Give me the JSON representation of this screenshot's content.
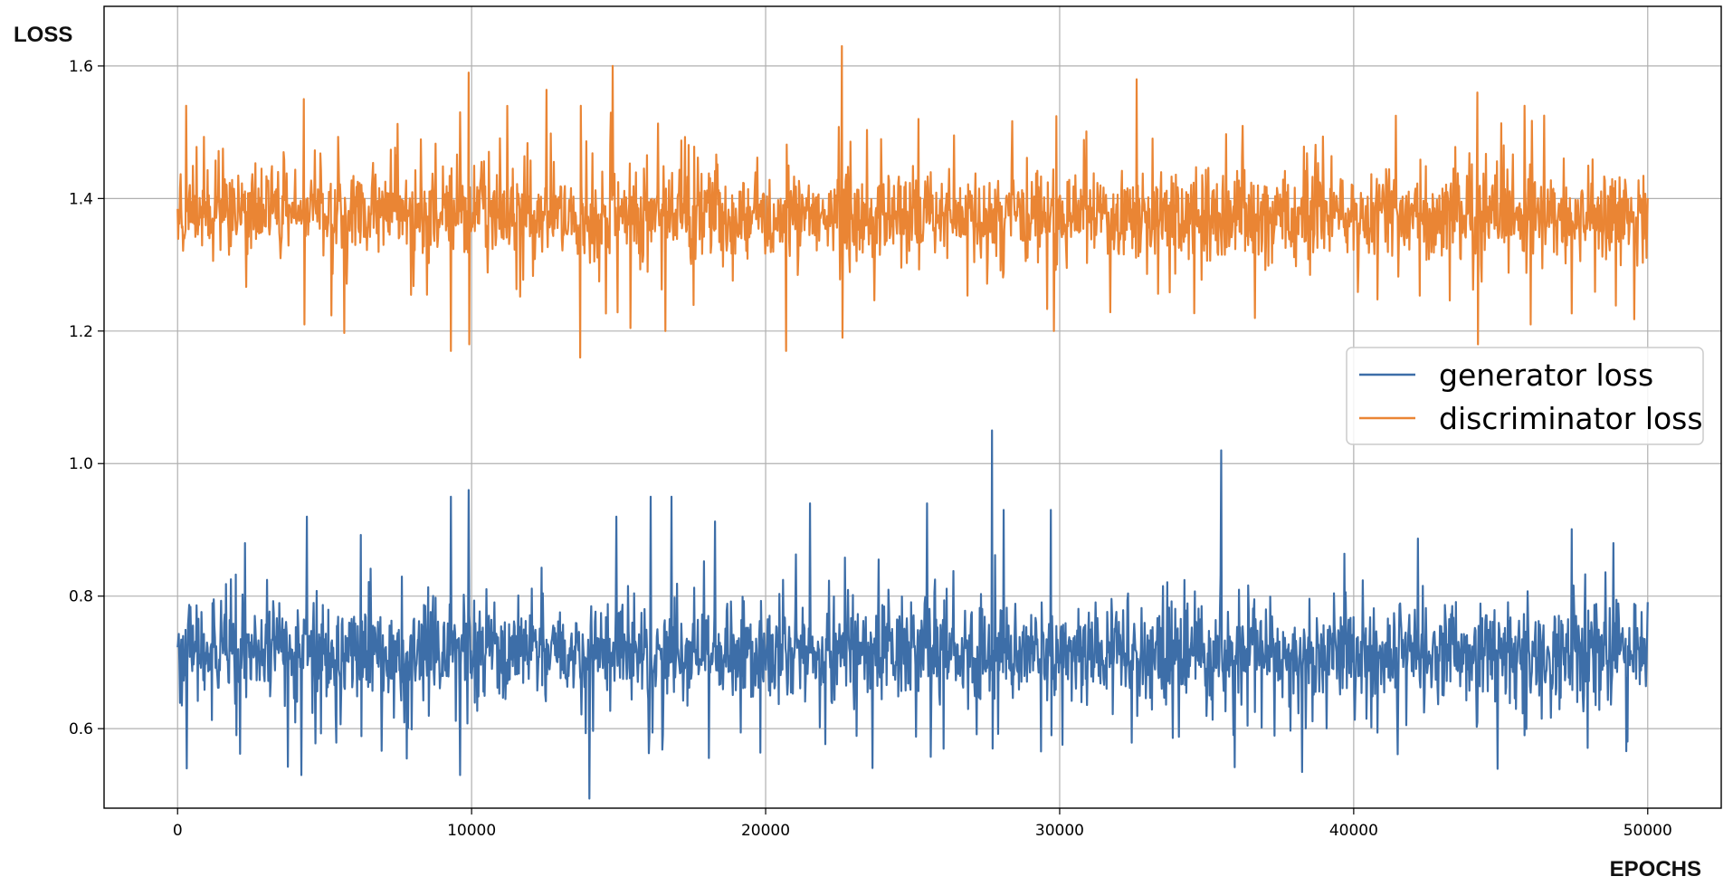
{
  "chart_data": {
    "type": "line",
    "xlabel": "EPOCHS",
    "ylabel": "LOSS",
    "xlim": [
      -2500,
      52500
    ],
    "ylim": [
      0.48,
      1.69
    ],
    "xticks": [
      0,
      10000,
      20000,
      30000,
      40000,
      50000
    ],
    "xtick_labels": [
      "0",
      "10000",
      "20000",
      "30000",
      "40000",
      "50000"
    ],
    "yticks": [
      0.6,
      0.8,
      1.0,
      1.2,
      1.4,
      1.6
    ],
    "ytick_labels": [
      "0.6",
      "0.8",
      "1.0",
      "1.2",
      "1.4",
      "1.6"
    ],
    "grid": true,
    "legend_position": "right",
    "series": [
      {
        "name": "generator loss",
        "color": "#3d6ea8",
        "x_range": [
          0,
          50000
        ],
        "points": 2400,
        "baseline": 0.715,
        "typical_range": [
          0.63,
          0.8
        ],
        "spikes": [
          {
            "x": 300,
            "y": 0.54
          },
          {
            "x": 2300,
            "y": 0.88
          },
          {
            "x": 4200,
            "y": 0.53
          },
          {
            "x": 4400,
            "y": 0.92
          },
          {
            "x": 9300,
            "y": 0.95
          },
          {
            "x": 9600,
            "y": 0.53
          },
          {
            "x": 9900,
            "y": 0.96
          },
          {
            "x": 14900,
            "y": 0.92
          },
          {
            "x": 16100,
            "y": 0.95
          },
          {
            "x": 16800,
            "y": 0.95
          },
          {
            "x": 21500,
            "y": 0.94
          },
          {
            "x": 25500,
            "y": 0.94
          },
          {
            "x": 27700,
            "y": 1.05
          },
          {
            "x": 27700,
            "y": 0.57
          },
          {
            "x": 28100,
            "y": 0.93
          },
          {
            "x": 29700,
            "y": 0.93
          },
          {
            "x": 29700,
            "y": 0.59
          },
          {
            "x": 35500,
            "y": 1.02
          },
          {
            "x": 45800,
            "y": 0.59
          },
          {
            "x": 44200,
            "y": 0.61
          }
        ]
      },
      {
        "name": "discriminator loss",
        "color": "#ea8534",
        "x_range": [
          0,
          50000
        ],
        "points": 2400,
        "baseline": 1.375,
        "typical_range": [
          1.3,
          1.45
        ],
        "spikes": [
          {
            "x": 300,
            "y": 1.54
          },
          {
            "x": 4300,
            "y": 1.55
          },
          {
            "x": 4300,
            "y": 1.21
          },
          {
            "x": 9300,
            "y": 1.17
          },
          {
            "x": 9600,
            "y": 1.53
          },
          {
            "x": 9900,
            "y": 1.59
          },
          {
            "x": 9900,
            "y": 1.18
          },
          {
            "x": 13700,
            "y": 1.16
          },
          {
            "x": 13700,
            "y": 1.54
          },
          {
            "x": 14800,
            "y": 1.6
          },
          {
            "x": 16600,
            "y": 1.2
          },
          {
            "x": 20700,
            "y": 1.17
          },
          {
            "x": 22600,
            "y": 1.63
          },
          {
            "x": 22600,
            "y": 1.19
          },
          {
            "x": 25200,
            "y": 1.52
          },
          {
            "x": 29800,
            "y": 1.2
          },
          {
            "x": 32600,
            "y": 1.58
          },
          {
            "x": 44200,
            "y": 1.56
          },
          {
            "x": 44200,
            "y": 1.18
          },
          {
            "x": 45800,
            "y": 1.54
          },
          {
            "x": 46000,
            "y": 1.21
          }
        ]
      }
    ]
  }
}
